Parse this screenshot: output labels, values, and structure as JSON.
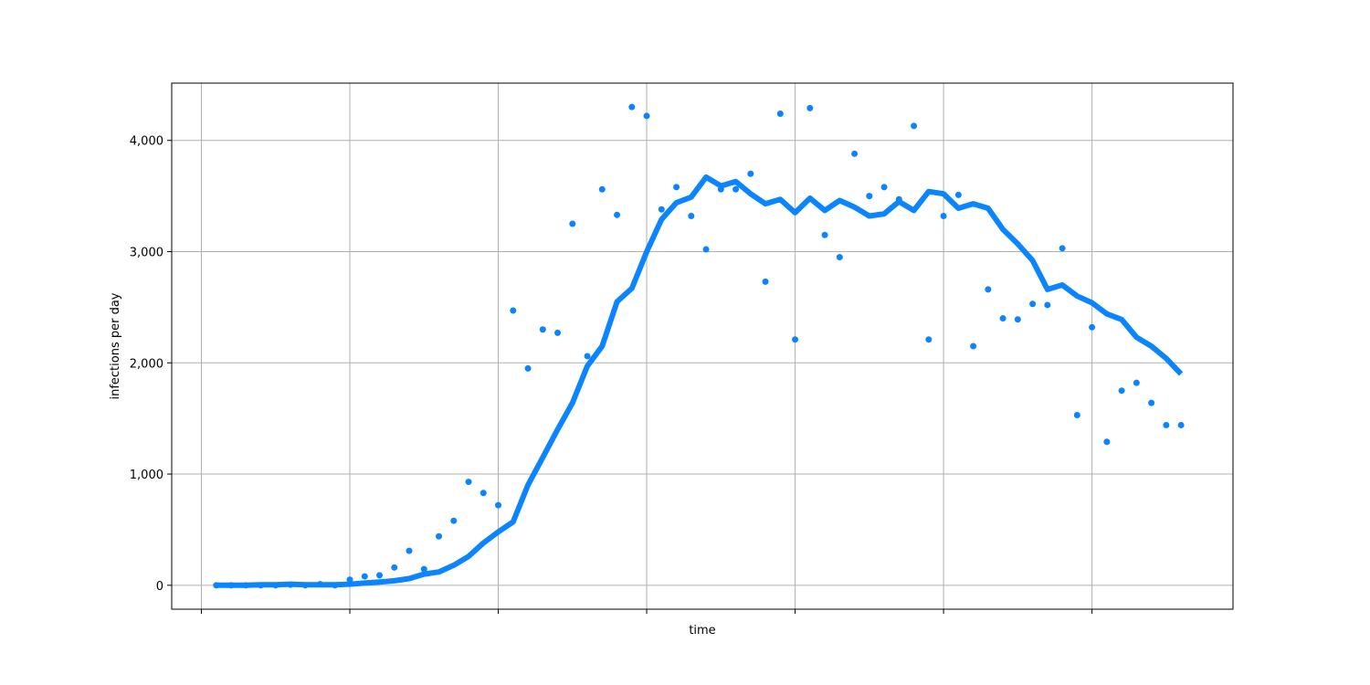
{
  "chart_data": {
    "type": "line",
    "title": "",
    "xlabel": "time",
    "ylabel": "infections per day",
    "grid": true,
    "legend": "none",
    "color": "#0a84ff",
    "xlim": [
      -2,
      69.5
    ],
    "ylim": [
      -215,
      4515
    ],
    "x_tick_values": [
      0,
      10,
      20,
      30,
      40,
      50,
      60
    ],
    "y_ticks": [
      {
        "value": 0,
        "label": "0"
      },
      {
        "value": 1000,
        "label": "1,000"
      },
      {
        "value": 2000,
        "label": "2,000"
      },
      {
        "value": 3000,
        "label": "3,000"
      },
      {
        "value": 4000,
        "label": "4,000"
      }
    ],
    "series": [
      {
        "kind": "scatter",
        "x": [
          1,
          2,
          3,
          4,
          5,
          6,
          7,
          8,
          9,
          10,
          11,
          12,
          13,
          14,
          15,
          16,
          17,
          18,
          19,
          20,
          21,
          22,
          23,
          24,
          25,
          26,
          27,
          28,
          29,
          30,
          31,
          32,
          33,
          34,
          35,
          36,
          37,
          38,
          39,
          40,
          41,
          42,
          43,
          44,
          45,
          46,
          47,
          48,
          49,
          50,
          51,
          52,
          53,
          54,
          55,
          56,
          57,
          58,
          59,
          60,
          61,
          62,
          63,
          64,
          65,
          66
        ],
        "values": [
          0,
          0,
          0,
          0,
          0,
          5,
          0,
          10,
          0,
          50,
          80,
          90,
          160,
          310,
          145,
          440,
          580,
          930,
          830,
          720,
          2470,
          1950,
          2300,
          2270,
          3250,
          2060,
          3560,
          3330,
          4300,
          4220,
          3380,
          3580,
          3320,
          3020,
          3560,
          3560,
          3700,
          2730,
          4240,
          2210,
          4290,
          3150,
          2950,
          3880,
          3500,
          3580,
          3470,
          4130,
          2210,
          3320,
          3510,
          2150,
          2660,
          2400,
          2390,
          2530,
          2520,
          3030,
          1530,
          2320,
          1290,
          1750,
          1820,
          1640,
          1440,
          1440
        ]
      },
      {
        "kind": "line",
        "x": [
          1,
          2,
          3,
          4,
          5,
          6,
          7,
          8,
          9,
          10,
          11,
          12,
          13,
          14,
          15,
          16,
          17,
          18,
          19,
          20,
          21,
          22,
          23,
          24,
          25,
          26,
          27,
          28,
          29,
          30,
          31,
          32,
          33,
          34,
          35,
          36,
          37,
          38,
          39,
          40,
          41,
          42,
          43,
          44,
          45,
          46,
          47,
          48,
          49,
          50,
          51,
          52,
          53,
          54,
          55,
          56,
          57,
          58,
          59,
          60,
          61,
          62,
          63,
          64,
          65,
          66
        ],
        "values": [
          0,
          0,
          0,
          5,
          5,
          10,
          5,
          5,
          5,
          10,
          20,
          30,
          40,
          60,
          100,
          120,
          180,
          260,
          380,
          480,
          570,
          900,
          1150,
          1400,
          1640,
          1970,
          2150,
          2550,
          2670,
          3000,
          3290,
          3440,
          3490,
          3670,
          3590,
          3630,
          3520,
          3430,
          3470,
          3350,
          3480,
          3370,
          3460,
          3400,
          3320,
          3340,
          3450,
          3370,
          3540,
          3520,
          3390,
          3430,
          3390,
          3200,
          3070,
          2920,
          2660,
          2700,
          2600,
          2540,
          2440,
          2390,
          2230,
          2150,
          2040,
          1900
        ]
      }
    ]
  }
}
